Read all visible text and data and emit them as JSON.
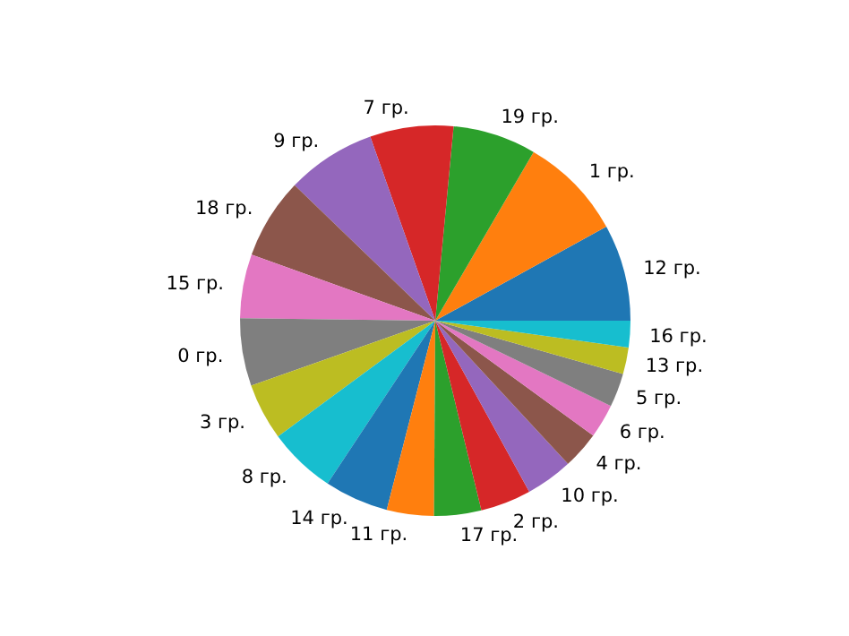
{
  "chart_data": {
    "type": "pie",
    "categories": [
      "12 гр.",
      "1 гр.",
      "19 гр.",
      "7 гр.",
      "9 гр.",
      "18 гр.",
      "15 гр.",
      "0 гр.",
      "3 гр.",
      "8 гр.",
      "14 гр.",
      "11 гр.",
      "17 гр.",
      "2 гр.",
      "10 гр.",
      "4 гр.",
      "6 гр.",
      "5 гр.",
      "13 гр.",
      "16 гр."
    ],
    "values": [
      8.0,
      8.6,
      6.9,
      6.9,
      7.4,
      6.7,
      5.3,
      5.6,
      4.7,
      5.6,
      5.3,
      3.9,
      3.9,
      4.2,
      3.9,
      3.1,
      2.8,
      2.8,
      2.2,
      2.2
    ],
    "colors": [
      "#1f77b4",
      "#ff7f0e",
      "#2ca02c",
      "#d62728",
      "#9467bd",
      "#8c564b",
      "#e377c2",
      "#7f7f7f",
      "#bcbd22",
      "#17becf",
      "#1f77b4",
      "#ff7f0e",
      "#2ca02c",
      "#d62728",
      "#9467bd",
      "#8c564b",
      "#e377c2",
      "#7f7f7f",
      "#bcbd22",
      "#17becf"
    ],
    "legend": false
  }
}
